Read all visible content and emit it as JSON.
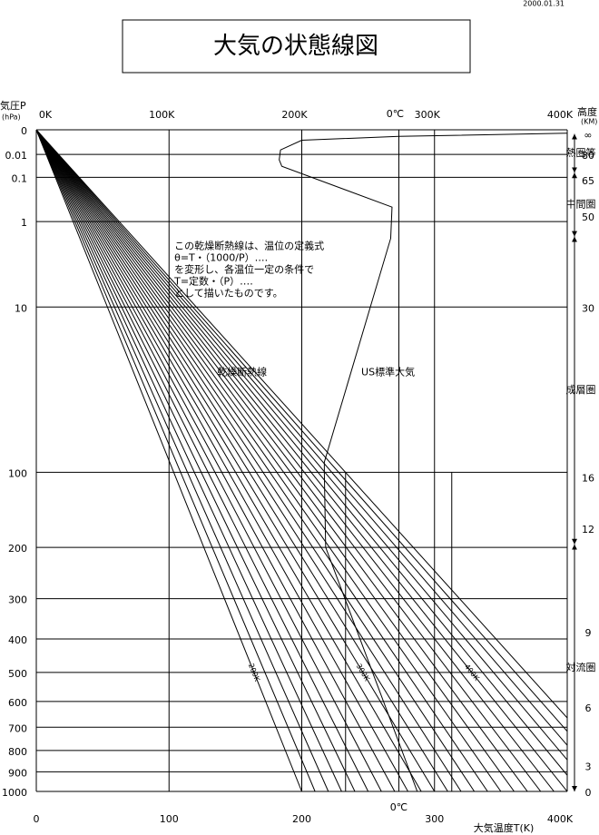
{
  "chart_data": {
    "type": "thermo",
    "title": "大気の状態線図",
    "date": "2000.01.31",
    "y_label": "気圧P",
    "y_unit": "(hPa)",
    "x_label": "大気温度T(K)",
    "alt_label": "高度",
    "alt_unit": "(KM)",
    "kappa": 0.286,
    "ylim": [
      0,
      1000
    ],
    "xlim": [
      0,
      400
    ],
    "yticks": [
      0,
      0.01,
      0.1,
      1,
      10,
      100,
      200,
      300,
      400,
      500,
      600,
      700,
      800,
      900,
      1000
    ],
    "xticks": [
      {
        "value": 0,
        "label": "0K"
      },
      {
        "value": 100,
        "label": "100K"
      },
      {
        "value": 200,
        "label": "200K"
      },
      {
        "value": 300,
        "label": "300K"
      },
      {
        "value": 400,
        "label": "400K"
      }
    ],
    "xticks_bottom": [
      0,
      100,
      200,
      300,
      {
        "value": 400,
        "label": "400K"
      }
    ],
    "zero_c": {
      "value": 273.15,
      "label": "0℃"
    },
    "short_verticals": [
      233,
      313
    ],
    "short_verticals_from": 100,
    "adiabats": [
      200,
      210,
      220,
      230,
      240,
      250,
      260,
      270,
      280,
      290,
      300,
      310,
      320,
      330,
      340,
      350,
      360,
      370,
      380,
      390,
      400,
      410,
      420,
      430,
      440,
      450
    ],
    "adiabat_labels": [
      {
        "value": 200,
        "label": "200K"
      },
      {
        "value": 300,
        "label": "300K"
      },
      {
        "value": 400,
        "label": "400K"
      }
    ],
    "adiabat_label_p": 500,
    "adiabat_name": "乾燥断熱線",
    "adiabat_name_at": {
      "x": 155,
      "p": 30
    },
    "standard": {
      "name": "US標準大気",
      "x": [
        400,
        273,
        200,
        184,
        183,
        185,
        268,
        267,
        217,
        217,
        218,
        287
      ],
      "values": [
        1e-05,
        0.0001,
        0.0005,
        0.005,
        0.02,
        0.04,
        0.55,
        1.8,
        90,
        100,
        200,
        1000
      ]
    },
    "standard_name_at": {
      "x": 265,
      "p": 30
    },
    "note": [
      "この乾燥断熱線は、温位の定義式",
      "θ=T・（1000/P）‥‥",
      "を変形し、各温位一定の条件で",
      "T=定数・（P）‥‥",
      "として描いたものです。"
    ],
    "note_at": {
      "x": 104,
      "p": 2.3
    },
    "altitude_labels": [
      "∞",
      "80",
      "65",
      "50",
      "30",
      "16",
      "12",
      "9",
      "6",
      "3",
      "0"
    ],
    "altitude_pressure": [
      2e-05,
      0.01,
      0.12,
      0.8,
      10,
      105,
      170,
      380,
      620,
      870,
      1000
    ],
    "layers": [
      {
        "name": "熱圏等",
        "top": 2e-05,
        "bottom": 0.07
      },
      {
        "name": "中間圏",
        "top": 0.07,
        "bottom": 1.7
      },
      {
        "name": "成層圏",
        "top": 1.7,
        "bottom": 195
      },
      {
        "name": "対流圏",
        "top": 195,
        "bottom": 1000
      }
    ]
  }
}
